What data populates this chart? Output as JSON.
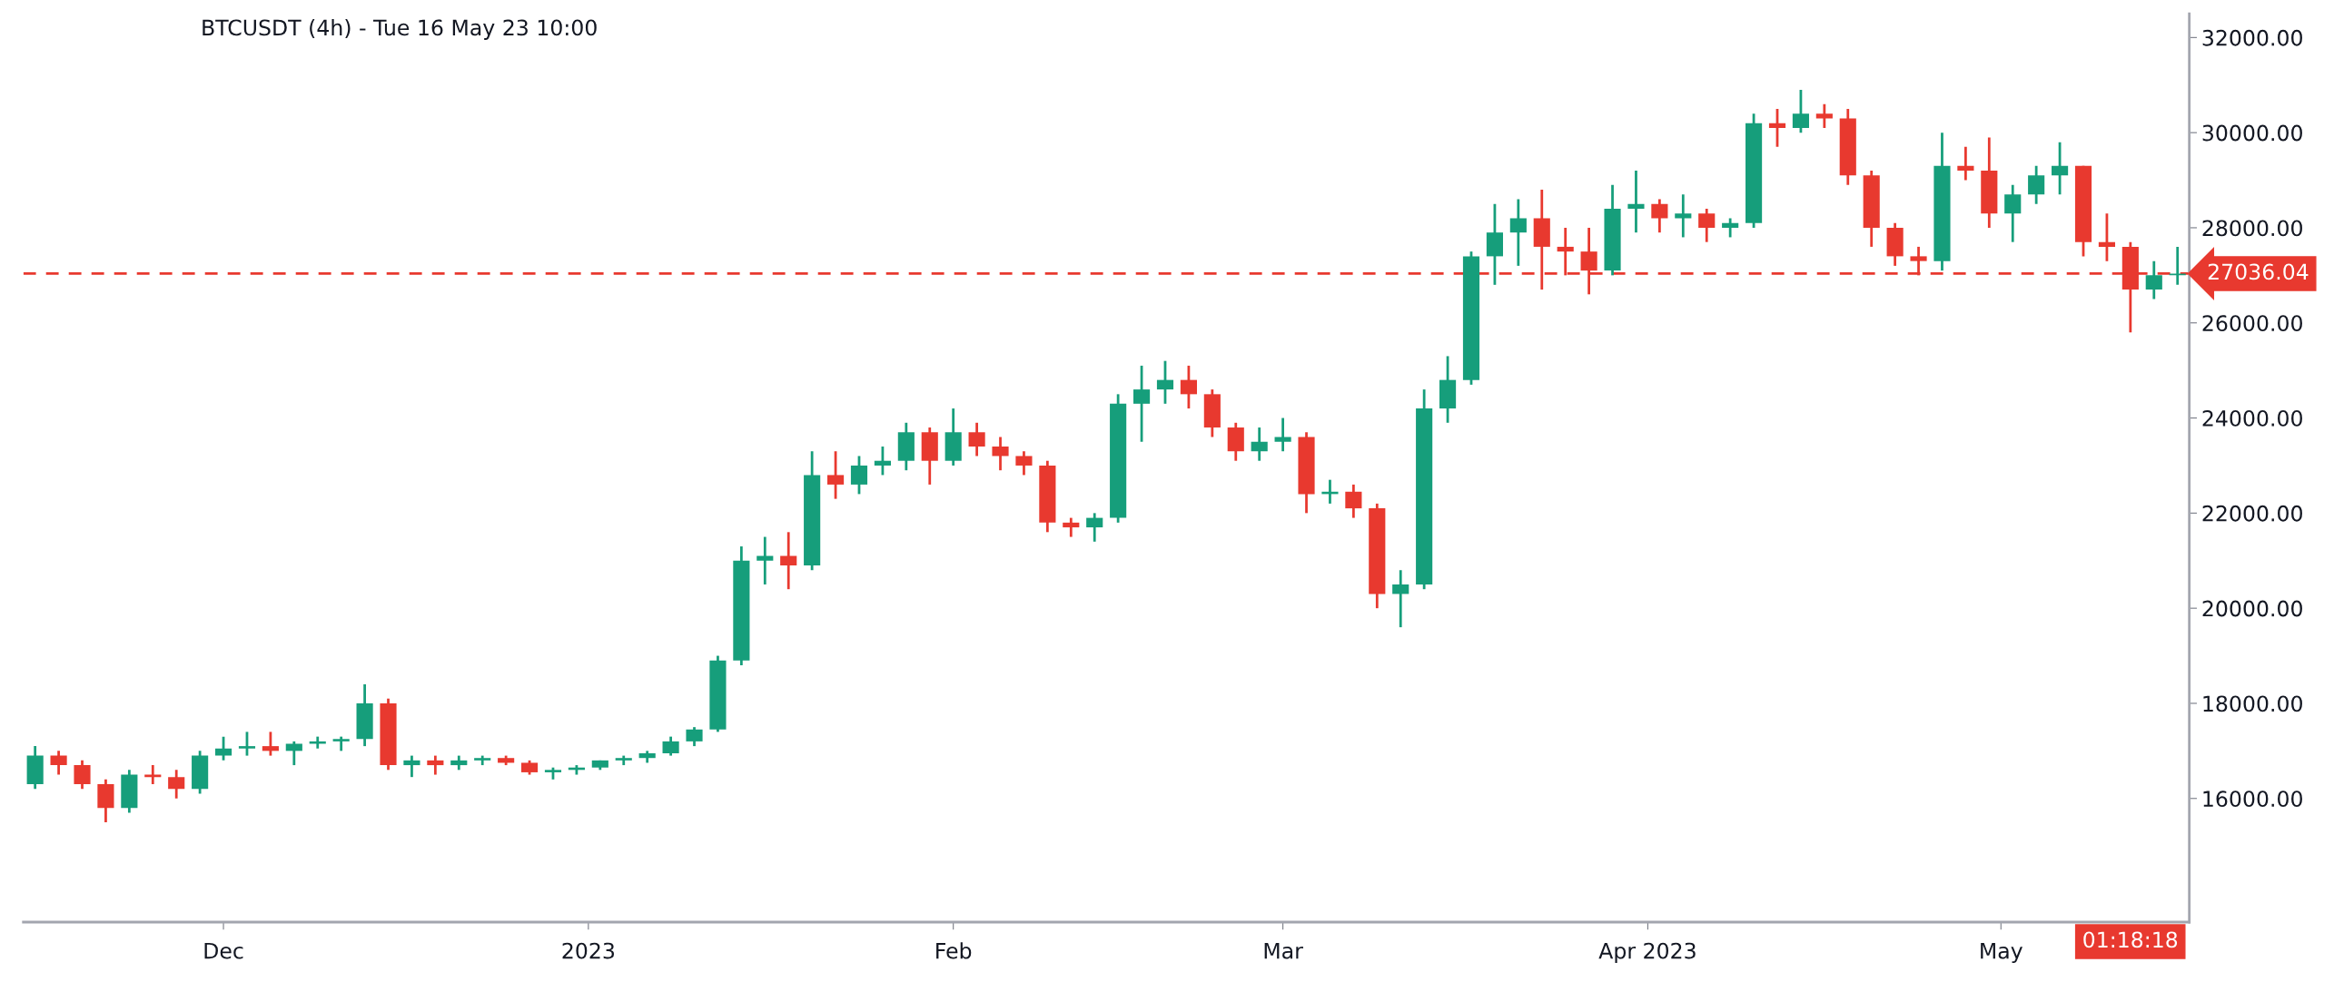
{
  "chart_data": {
    "type": "candlestick",
    "title": "BTCUSDT (4h) - Tue 16 May 23 10:00",
    "x": [
      "2022-11-15",
      "2022-11-17",
      "2022-11-19",
      "2022-11-21",
      "2022-11-23",
      "2022-11-25",
      "2022-11-27",
      "2022-11-29",
      "2022-12-01",
      "2022-12-03",
      "2022-12-05",
      "2022-12-07",
      "2022-12-09",
      "2022-12-11",
      "2022-12-13",
      "2022-12-15",
      "2022-12-17",
      "2022-12-19",
      "2022-12-21",
      "2022-12-23",
      "2022-12-25",
      "2022-12-27",
      "2022-12-29",
      "2022-12-31",
      "2023-01-02",
      "2023-01-04",
      "2023-01-06",
      "2023-01-08",
      "2023-01-10",
      "2023-01-12",
      "2023-01-14",
      "2023-01-16",
      "2023-01-18",
      "2023-01-20",
      "2023-01-22",
      "2023-01-24",
      "2023-01-26",
      "2023-01-28",
      "2023-01-30",
      "2023-02-01",
      "2023-02-03",
      "2023-02-05",
      "2023-02-07",
      "2023-02-09",
      "2023-02-11",
      "2023-02-13",
      "2023-02-15",
      "2023-02-17",
      "2023-02-19",
      "2023-02-21",
      "2023-02-23",
      "2023-02-25",
      "2023-02-27",
      "2023-03-01",
      "2023-03-03",
      "2023-03-05",
      "2023-03-07",
      "2023-03-09",
      "2023-03-11",
      "2023-03-13",
      "2023-03-15",
      "2023-03-17",
      "2023-03-19",
      "2023-03-21",
      "2023-03-23",
      "2023-03-25",
      "2023-03-27",
      "2023-03-29",
      "2023-03-31",
      "2023-04-02",
      "2023-04-04",
      "2023-04-06",
      "2023-04-08",
      "2023-04-10",
      "2023-04-12",
      "2023-04-14",
      "2023-04-16",
      "2023-04-18",
      "2023-04-20",
      "2023-04-22",
      "2023-04-24",
      "2023-04-26",
      "2023-04-28",
      "2023-04-30",
      "2023-05-02",
      "2023-05-04",
      "2023-05-06",
      "2023-05-08",
      "2023-05-10",
      "2023-05-12",
      "2023-05-14",
      "2023-05-16"
    ],
    "ohlc": [
      [
        16300,
        17100,
        16200,
        16900
      ],
      [
        16900,
        17000,
        16500,
        16700
      ],
      [
        16700,
        16800,
        16200,
        16300
      ],
      [
        16300,
        16400,
        15500,
        15800
      ],
      [
        15800,
        16600,
        15700,
        16500
      ],
      [
        16500,
        16700,
        16300,
        16450
      ],
      [
        16450,
        16600,
        16000,
        16200
      ],
      [
        16200,
        17000,
        16100,
        16900
      ],
      [
        16900,
        17300,
        16800,
        17050
      ],
      [
        17050,
        17400,
        16900,
        17100
      ],
      [
        17100,
        17400,
        16900,
        17000
      ],
      [
        17000,
        17200,
        16700,
        17150
      ],
      [
        17150,
        17300,
        17050,
        17200
      ],
      [
        17200,
        17300,
        17000,
        17250
      ],
      [
        17250,
        18400,
        17100,
        18000
      ],
      [
        18000,
        18100,
        16600,
        16700
      ],
      [
        16700,
        16900,
        16450,
        16800
      ],
      [
        16800,
        16900,
        16500,
        16700
      ],
      [
        16700,
        16900,
        16600,
        16800
      ],
      [
        16800,
        16900,
        16700,
        16850
      ],
      [
        16850,
        16900,
        16700,
        16750
      ],
      [
        16750,
        16800,
        16500,
        16550
      ],
      [
        16550,
        16650,
        16400,
        16600
      ],
      [
        16600,
        16700,
        16500,
        16650
      ],
      [
        16650,
        16800,
        16600,
        16800
      ],
      [
        16800,
        16900,
        16700,
        16850
      ],
      [
        16850,
        17000,
        16750,
        16950
      ],
      [
        16950,
        17300,
        16900,
        17200
      ],
      [
        17200,
        17500,
        17100,
        17450
      ],
      [
        17450,
        19000,
        17400,
        18900
      ],
      [
        18900,
        21300,
        18800,
        21000
      ],
      [
        21000,
        21500,
        20500,
        21100
      ],
      [
        21100,
        21600,
        20400,
        20900
      ],
      [
        20900,
        23300,
        20800,
        22800
      ],
      [
        22800,
        23300,
        22300,
        22600
      ],
      [
        22600,
        23200,
        22400,
        23000
      ],
      [
        23000,
        23400,
        22800,
        23100
      ],
      [
        23100,
        23900,
        22900,
        23700
      ],
      [
        23700,
        23800,
        22600,
        23100
      ],
      [
        23100,
        24200,
        23000,
        23700
      ],
      [
        23700,
        23900,
        23200,
        23400
      ],
      [
        23400,
        23600,
        22900,
        23200
      ],
      [
        23200,
        23300,
        22800,
        23000
      ],
      [
        23000,
        23100,
        21600,
        21800
      ],
      [
        21800,
        21900,
        21500,
        21700
      ],
      [
        21700,
        22000,
        21400,
        21900
      ],
      [
        21900,
        24500,
        21800,
        24300
      ],
      [
        24300,
        25100,
        23500,
        24600
      ],
      [
        24600,
        25200,
        24300,
        24800
      ],
      [
        24800,
        25100,
        24200,
        24500
      ],
      [
        24500,
        24600,
        23600,
        23800
      ],
      [
        23800,
        23900,
        23100,
        23300
      ],
      [
        23300,
        23800,
        23100,
        23500
      ],
      [
        23500,
        24000,
        23300,
        23600
      ],
      [
        23600,
        23700,
        22000,
        22400
      ],
      [
        22400,
        22700,
        22200,
        22450
      ],
      [
        22450,
        22600,
        21900,
        22100
      ],
      [
        22100,
        22200,
        20000,
        20300
      ],
      [
        20300,
        20800,
        19600,
        20500
      ],
      [
        20500,
        24600,
        20400,
        24200
      ],
      [
        24200,
        25300,
        23900,
        24800
      ],
      [
        24800,
        27500,
        24700,
        27400
      ],
      [
        27400,
        28500,
        26800,
        27900
      ],
      [
        27900,
        28600,
        27200,
        28200
      ],
      [
        28200,
        28800,
        26700,
        27600
      ],
      [
        27600,
        28000,
        27000,
        27500
      ],
      [
        27500,
        28000,
        26600,
        27100
      ],
      [
        27100,
        28900,
        27000,
        28400
      ],
      [
        28400,
        29200,
        27900,
        28500
      ],
      [
        28500,
        28600,
        27900,
        28200
      ],
      [
        28200,
        28700,
        27800,
        28300
      ],
      [
        28300,
        28400,
        27700,
        28000
      ],
      [
        28000,
        28200,
        27800,
        28100
      ],
      [
        28100,
        30400,
        28000,
        30200
      ],
      [
        30200,
        30500,
        29700,
        30100
      ],
      [
        30100,
        30900,
        30000,
        30400
      ],
      [
        30400,
        30600,
        30100,
        30300
      ],
      [
        30300,
        30500,
        28900,
        29100
      ],
      [
        29100,
        29200,
        27600,
        28000
      ],
      [
        28000,
        28100,
        27200,
        27400
      ],
      [
        27400,
        27600,
        27000,
        27300
      ],
      [
        27300,
        30000,
        27100,
        29300
      ],
      [
        29300,
        29700,
        29000,
        29200
      ],
      [
        29200,
        29900,
        28000,
        28300
      ],
      [
        28300,
        28900,
        27700,
        28700
      ],
      [
        28700,
        29300,
        28500,
        29100
      ],
      [
        29100,
        29800,
        28700,
        29300
      ],
      [
        29300,
        29300,
        27400,
        27700
      ],
      [
        27700,
        28300,
        27300,
        27600
      ],
      [
        27600,
        27700,
        25800,
        26700
      ],
      [
        26700,
        27300,
        26500,
        27000
      ],
      [
        27000,
        27600,
        26800,
        27036
      ]
    ],
    "colors": [
      "#169e7b",
      "#e8392f",
      "#e8392f",
      "#e8392f",
      "#169e7b",
      "#e8392f",
      "#e8392f",
      "#169e7b",
      "#169e7b",
      "#169e7b",
      "#e8392f",
      "#169e7b",
      "#169e7b",
      "#169e7b",
      "#169e7b",
      "#e8392f",
      "#169e7b",
      "#e8392f",
      "#169e7b",
      "#169e7b",
      "#e8392f",
      "#e8392f",
      "#169e7b",
      "#169e7b",
      "#169e7b",
      "#169e7b",
      "#169e7b",
      "#169e7b",
      "#169e7b",
      "#169e7b",
      "#169e7b",
      "#169e7b",
      "#e8392f",
      "#169e7b",
      "#e8392f",
      "#169e7b",
      "#169e7b",
      "#169e7b",
      "#e8392f",
      "#169e7b",
      "#e8392f",
      "#e8392f",
      "#e8392f",
      "#e8392f",
      "#e8392f",
      "#169e7b",
      "#169e7b",
      "#169e7b",
      "#169e7b",
      "#e8392f",
      "#e8392f",
      "#e8392f",
      "#169e7b",
      "#169e7b",
      "#e8392f",
      "#169e7b",
      "#e8392f",
      "#e8392f",
      "#169e7b",
      "#169e7b",
      "#169e7b",
      "#169e7b",
      "#169e7b",
      "#169e7b",
      "#e8392f",
      "#e8392f",
      "#e8392f",
      "#169e7b",
      "#169e7b",
      "#e8392f",
      "#169e7b",
      "#e8392f",
      "#169e7b",
      "#169e7b",
      "#e8392f",
      "#169e7b",
      "#e8392f",
      "#e8392f",
      "#e8392f",
      "#e8392f",
      "#e8392f",
      "#169e7b",
      "#e8392f",
      "#e8392f",
      "#169e7b",
      "#169e7b",
      "#169e7b",
      "#e8392f",
      "#e8392f",
      "#e8392f",
      "#169e7b",
      "#169e7b"
    ],
    "xlim": [
      "2022-11-14",
      "2023-05-17"
    ],
    "xticks": [
      {
        "value": "2022-12-01",
        "label": "Dec"
      },
      {
        "value": "2023-01-01",
        "label": "2023"
      },
      {
        "value": "2023-02-01",
        "label": "Feb"
      },
      {
        "value": "2023-03-01",
        "label": "Mar"
      },
      {
        "value": "2023-04-01",
        "label": "Apr 2023"
      },
      {
        "value": "2023-05-01",
        "label": "May"
      }
    ],
    "ylim": [
      13400,
      32500
    ],
    "yticks": [
      {
        "value": 16000,
        "label": "16000.00"
      },
      {
        "value": 18000,
        "label": "18000.00"
      },
      {
        "value": 20000,
        "label": "20000.00"
      },
      {
        "value": 22000,
        "label": "22000.00"
      },
      {
        "value": 24000,
        "label": "24000.00"
      },
      {
        "value": 26000,
        "label": "26000.00"
      },
      {
        "value": 28000,
        "label": "28000.00"
      },
      {
        "value": 30000,
        "label": "30000.00"
      },
      {
        "value": 32000,
        "label": "32000.00"
      }
    ],
    "ref_lines": [
      {
        "axis": "y",
        "value": 27036.04,
        "label": "27036.04",
        "color": "#e8392f",
        "line_style": "dashed"
      }
    ],
    "annotations": [
      "01:18:18"
    ],
    "grid": false
  }
}
